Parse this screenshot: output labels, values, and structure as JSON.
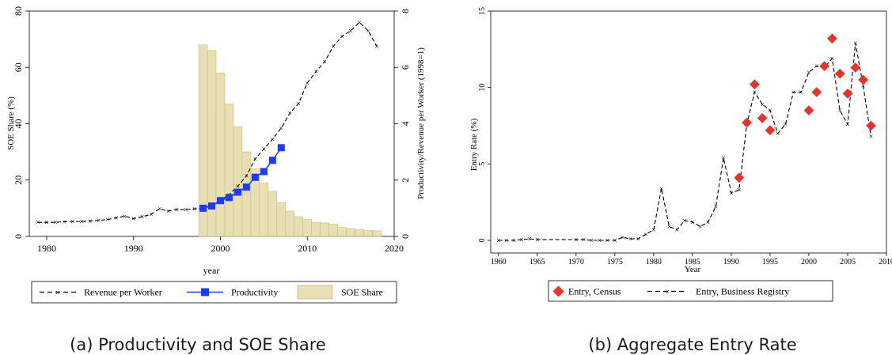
{
  "chart_data": [
    {
      "type": "bar+line",
      "caption": "(a) Productivity and SOE Share",
      "xlabel": "year",
      "ylabel_left": "SOE Share (%)",
      "ylabel_right": "Productivity/Revenue per Worker (1998=1)",
      "xlim": [
        1978,
        2020
      ],
      "ylim_left": [
        0,
        80
      ],
      "ylim_right": [
        0,
        8
      ],
      "xticks": [
        "1980",
        "1990",
        "2000",
        "2010",
        "2020"
      ],
      "yticks_left": [
        "0",
        "20",
        "40",
        "60",
        "80"
      ],
      "yticks_right": [
        "0",
        "2",
        "4",
        "6",
        "8"
      ],
      "legend": [
        "Revenue per Worker",
        "Productivity",
        "SOE Share"
      ],
      "colors": {
        "revenue": "#000000",
        "productivity": "#1a3cff",
        "soe_fill": "#e9dfb5",
        "soe_edge": "#c9bb82"
      },
      "soe_share": {
        "x": [
          1998,
          1999,
          2000,
          2001,
          2002,
          2003,
          2004,
          2005,
          2006,
          2007,
          2008,
          2009,
          2010,
          2011,
          2012,
          2013,
          2014,
          2015,
          2016,
          2017,
          2018
        ],
        "values": [
          68,
          66,
          58,
          47,
          39,
          30,
          24,
          19,
          16,
          12,
          9,
          7,
          6,
          5,
          4.8,
          4.3,
          3.2,
          2.8,
          2.5,
          2.2,
          2
        ]
      },
      "revenue_per_worker": {
        "x": [
          1979,
          1980,
          1981,
          1982,
          1983,
          1984,
          1985,
          1986,
          1987,
          1988,
          1989,
          1990,
          1991,
          1992,
          1993,
          1994,
          1995,
          1996,
          1997,
          1998,
          1999,
          2000,
          2001,
          2002,
          2003,
          2004,
          2005,
          2006,
          2007,
          2008,
          2009,
          2010,
          2011,
          2012,
          2013,
          2014,
          2015,
          2016,
          2017,
          2018
        ],
        "values": [
          0.5,
          0.5,
          0.5,
          0.52,
          0.53,
          0.53,
          0.55,
          0.57,
          0.6,
          0.66,
          0.72,
          0.63,
          0.7,
          0.78,
          0.98,
          0.9,
          0.96,
          0.95,
          0.98,
          1.0,
          1.12,
          1.28,
          1.48,
          1.78,
          2.15,
          2.75,
          3.1,
          3.45,
          3.85,
          4.38,
          4.72,
          5.45,
          5.85,
          6.2,
          6.75,
          7.1,
          7.3,
          7.6,
          7.3,
          6.75
        ]
      },
      "productivity": {
        "x": [
          1998,
          1999,
          2000,
          2001,
          2002,
          2003,
          2004,
          2005,
          2006,
          2007
        ],
        "values": [
          1.0,
          1.08,
          1.27,
          1.38,
          1.57,
          1.75,
          2.1,
          2.3,
          2.7,
          3.15
        ]
      }
    },
    {
      "type": "scatter+line",
      "caption": "(b) Aggregate Entry Rate",
      "xlabel": "Year",
      "ylabel": "Entry Rate (%)",
      "xlim": [
        1959,
        2010
      ],
      "ylim": [
        0,
        15
      ],
      "xticks": [
        "1960",
        "1965",
        "1970",
        "1975",
        "1980",
        "1985",
        "1990",
        "1995",
        "2000",
        "2005",
        "2010"
      ],
      "yticks": [
        "0",
        "5",
        "10",
        "15"
      ],
      "legend": [
        "Entry, Census",
        "Entry, Business Registry"
      ],
      "colors": {
        "census": "#e8332a",
        "registry": "#000000"
      },
      "entry_census": {
        "x": [
          1991,
          1992,
          1993,
          1994,
          1995,
          2000,
          2001,
          2002,
          2003,
          2004,
          2005,
          2006,
          2007,
          2008
        ],
        "values": [
          4.1,
          7.7,
          10.2,
          8.0,
          7.2,
          8.5,
          9.7,
          11.4,
          13.2,
          10.9,
          9.6,
          11.3,
          10.5,
          7.5
        ]
      },
      "entry_registry": {
        "x": [
          1960,
          1961,
          1962,
          1963,
          1964,
          1965,
          1970,
          1971,
          1972,
          1973,
          1974,
          1975,
          1976,
          1977,
          1978,
          1979,
          1980,
          1981,
          1982,
          1983,
          1984,
          1985,
          1986,
          1987,
          1988,
          1989,
          1990,
          1991,
          1992,
          1993,
          1994,
          1995,
          1996,
          1997,
          1998,
          1999,
          2000,
          2001,
          2002,
          2003,
          2004,
          2005,
          2006,
          2007,
          2008
        ],
        "values": [
          0.0,
          0.0,
          0.0,
          0.05,
          0.1,
          0.05,
          0.05,
          0.05,
          0.0,
          0.0,
          0.0,
          0.0,
          0.2,
          0.1,
          0.1,
          0.4,
          0.7,
          3.4,
          0.9,
          0.7,
          1.3,
          1.2,
          0.9,
          1.2,
          2.2,
          5.4,
          3.1,
          3.3,
          7.6,
          9.7,
          8.9,
          8.5,
          7.0,
          7.6,
          9.7,
          9.7,
          11.0,
          11.4,
          11.3,
          11.9,
          8.5,
          7.6,
          12.9,
          10.1,
          6.8
        ]
      }
    }
  ]
}
